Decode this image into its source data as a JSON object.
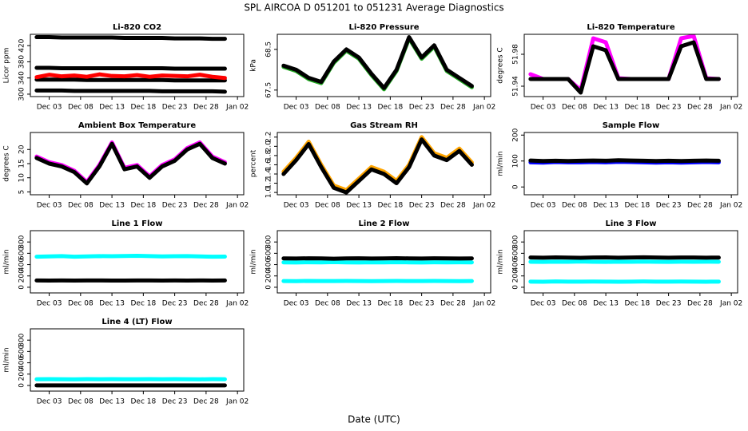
{
  "title": "SPL   AIRCOA D   051201 to 051231   Average Diagnostics",
  "xlabel": "Date (UTC)",
  "chart_data": [
    {
      "type": "line",
      "title": "Li-820 CO2",
      "ylabel": "Licor ppm",
      "x": [
        "Dec 01",
        "Dec 03",
        "Dec 05",
        "Dec 07",
        "Dec 09",
        "Dec 11",
        "Dec 13",
        "Dec 15",
        "Dec 17",
        "Dec 19",
        "Dec 21",
        "Dec 23",
        "Dec 25",
        "Dec 27",
        "Dec 29",
        "Dec 31"
      ],
      "xlim": [
        "Nov 30",
        "Jan 03"
      ],
      "xticks": [
        "Dec 03",
        "Dec 08",
        "Dec 13",
        "Dec 18",
        "Dec 23",
        "Dec 28",
        "Jan 02"
      ],
      "ylim": [
        294,
        448
      ],
      "yticks": [
        300,
        340,
        380,
        420
      ],
      "series": [
        {
          "color": "#000000",
          "values": [
            441,
            441,
            440,
            440,
            440,
            440,
            440,
            439,
            439,
            439,
            439,
            438,
            438,
            438,
            437,
            437
          ]
        },
        {
          "color": "#000000",
          "values": [
            365,
            365,
            364,
            364,
            364,
            364,
            364,
            364,
            364,
            364,
            364,
            363,
            363,
            363,
            363,
            363
          ]
        },
        {
          "color": "#000000",
          "values": [
            336,
            336,
            336,
            336,
            335,
            335,
            335,
            335,
            335,
            335,
            335,
            334,
            334,
            334,
            334,
            334
          ]
        },
        {
          "color": "#000000",
          "values": [
            309,
            309,
            309,
            308,
            308,
            308,
            308,
            308,
            308,
            308,
            307,
            307,
            307,
            307,
            307,
            306
          ]
        },
        {
          "color": "#ff0000",
          "values": [
            342,
            348,
            344,
            346,
            343,
            349,
            345,
            344,
            347,
            343,
            346,
            345,
            344,
            348,
            343,
            340
          ]
        }
      ]
    },
    {
      "type": "line",
      "title": "Li-820 Pressure",
      "ylabel": "kPa",
      "x": [
        "Dec 01",
        "Dec 03",
        "Dec 05",
        "Dec 07",
        "Dec 09",
        "Dec 11",
        "Dec 13",
        "Dec 15",
        "Dec 17",
        "Dec 19",
        "Dec 21",
        "Dec 23",
        "Dec 25",
        "Dec 27",
        "Dec 29",
        "Dec 31"
      ],
      "xlim": [
        "Nov 30",
        "Jan 03"
      ],
      "xticks": [
        "Dec 03",
        "Dec 08",
        "Dec 13",
        "Dec 18",
        "Dec 23",
        "Dec 28",
        "Jan 02"
      ],
      "ylim": [
        67.34,
        68.87
      ],
      "yticks": [
        67.5,
        68.5
      ],
      "series": [
        {
          "color": "#22aa22",
          "values": [
            68.07,
            67.97,
            67.77,
            67.67,
            68.17,
            68.47,
            68.27,
            67.87,
            67.52,
            67.97,
            68.77,
            68.27,
            68.57,
            67.97,
            67.77,
            67.57
          ]
        },
        {
          "color": "#000000",
          "values": [
            68.1,
            68.0,
            67.8,
            67.7,
            68.2,
            68.5,
            68.3,
            67.9,
            67.55,
            68.0,
            68.8,
            68.3,
            68.6,
            68.0,
            67.8,
            67.6
          ]
        }
      ]
    },
    {
      "type": "line",
      "title": "Li-820 Temperature",
      "ylabel": "degrees C",
      "x": [
        "Dec 01",
        "Dec 03",
        "Dec 05",
        "Dec 07",
        "Dec 09",
        "Dec 11",
        "Dec 13",
        "Dec 15",
        "Dec 17",
        "Dec 19",
        "Dec 21",
        "Dec 23",
        "Dec 25",
        "Dec 27",
        "Dec 29",
        "Dec 31"
      ],
      "xlim": [
        "Nov 30",
        "Jan 03"
      ],
      "xticks": [
        "Dec 03",
        "Dec 08",
        "Dec 13",
        "Dec 18",
        "Dec 23",
        "Dec 28",
        "Jan 02"
      ],
      "ylim": [
        51.927,
        52.005
      ],
      "yticks": [
        51.94,
        51.98
      ],
      "series": [
        {
          "color": "#ff00ff",
          "values": [
            51.955,
            51.949,
            51.949,
            51.949,
            51.935,
            52.0,
            51.995,
            51.95,
            51.949,
            51.949,
            51.949,
            51.949,
            52.0,
            52.003,
            51.95,
            51.949
          ]
        },
        {
          "color": "#000000",
          "values": [
            51.949,
            51.949,
            51.949,
            51.949,
            51.932,
            51.99,
            51.985,
            51.949,
            51.949,
            51.949,
            51.949,
            51.949,
            51.99,
            51.995,
            51.949,
            51.949
          ]
        }
      ]
    },
    {
      "type": "line",
      "title": "Ambient Box Temperature",
      "ylabel": "degrees C",
      "x": [
        "Dec 01",
        "Dec 03",
        "Dec 05",
        "Dec 07",
        "Dec 09",
        "Dec 11",
        "Dec 13",
        "Dec 15",
        "Dec 17",
        "Dec 19",
        "Dec 21",
        "Dec 23",
        "Dec 25",
        "Dec 27",
        "Dec 29",
        "Dec 31"
      ],
      "xlim": [
        "Nov 30",
        "Jan 03"
      ],
      "xticks": [
        "Dec 03",
        "Dec 08",
        "Dec 13",
        "Dec 18",
        "Dec 23",
        "Dec 28",
        "Jan 02"
      ],
      "ylim": [
        4,
        26
      ],
      "yticks": [
        5,
        10,
        15,
        20
      ],
      "series": [
        {
          "color": "#ff00ff",
          "values": [
            17.5,
            15.5,
            14.5,
            12.5,
            8.5,
            14.5,
            22.5,
            13.5,
            14.5,
            10.5,
            14.5,
            16.5,
            20.5,
            22.5,
            17.5,
            15.5
          ]
        },
        {
          "color": "#000000",
          "values": [
            17,
            15,
            14,
            12,
            8,
            14,
            22,
            13,
            14,
            10,
            14,
            16,
            20,
            22,
            17,
            15
          ]
        }
      ]
    },
    {
      "type": "line",
      "title": "Gas Stream RH",
      "ylabel": "percent",
      "x": [
        "Dec 01",
        "Dec 03",
        "Dec 05",
        "Dec 07",
        "Dec 09",
        "Dec 11",
        "Dec 13",
        "Dec 15",
        "Dec 17",
        "Dec 19",
        "Dec 21",
        "Dec 23",
        "Dec 25",
        "Dec 27",
        "Dec 29",
        "Dec 31"
      ],
      "xlim": [
        "Nov 30",
        "Jan 03"
      ],
      "xticks": [
        "Dec 03",
        "Dec 08",
        "Dec 13",
        "Dec 18",
        "Dec 23",
        "Dec 28",
        "Jan 02"
      ],
      "ylim": [
        0.95,
        2.3
      ],
      "yticks": [
        {
          "value": 1,
          "label": "1.0"
        },
        1.2,
        1.4,
        1.6,
        1.8,
        {
          "value": 2,
          "label": "2.0"
        },
        2.2
      ],
      "series": [
        {
          "color": "#ffa500",
          "values": [
            1.45,
            1.75,
            2.1,
            1.6,
            1.15,
            1.05,
            1.3,
            1.55,
            1.45,
            1.25,
            1.6,
            2.2,
            1.85,
            1.75,
            1.95,
            1.65
          ]
        },
        {
          "color": "#000000",
          "values": [
            1.4,
            1.7,
            2.05,
            1.55,
            1.1,
            1.0,
            1.25,
            1.5,
            1.4,
            1.2,
            1.55,
            2.15,
            1.8,
            1.7,
            1.9,
            1.6
          ]
        }
      ]
    },
    {
      "type": "line",
      "title": "Sample Flow",
      "ylabel": "ml/min",
      "x": [
        "Dec 01",
        "Dec 03",
        "Dec 05",
        "Dec 07",
        "Dec 09",
        "Dec 11",
        "Dec 13",
        "Dec 15",
        "Dec 17",
        "Dec 19",
        "Dec 21",
        "Dec 23",
        "Dec 25",
        "Dec 27",
        "Dec 29",
        "Dec 31"
      ],
      "xlim": [
        "Nov 30",
        "Jan 03"
      ],
      "xticks": [
        "Dec 03",
        "Dec 08",
        "Dec 13",
        "Dec 18",
        "Dec 23",
        "Dec 28",
        "Jan 02"
      ],
      "ylim": [
        -30,
        210
      ],
      "yticks": [
        0,
        100,
        200
      ],
      "series": [
        {
          "color": "#0000ff",
          "values": [
            95,
            94,
            96,
            95,
            95,
            96,
            95,
            97,
            96,
            95,
            94,
            95,
            94,
            95,
            96,
            95
          ]
        },
        {
          "color": "#000000",
          "values": [
            102,
            100,
            101,
            100,
            101,
            102,
            101,
            103,
            102,
            101,
            100,
            101,
            100,
            101,
            102,
            101
          ]
        }
      ]
    },
    {
      "type": "line",
      "title": "Line 1 Flow",
      "ylabel": "ml/min",
      "x": [
        "Dec 01",
        "Dec 03",
        "Dec 05",
        "Dec 07",
        "Dec 09",
        "Dec 11",
        "Dec 13",
        "Dec 15",
        "Dec 17",
        "Dec 19",
        "Dec 21",
        "Dec 23",
        "Dec 25",
        "Dec 27",
        "Dec 29",
        "Dec 31"
      ],
      "xlim": [
        "Nov 30",
        "Jan 03"
      ],
      "xticks": [
        "Dec 03",
        "Dec 08",
        "Dec 13",
        "Dec 18",
        "Dec 23",
        "Dec 28",
        "Jan 02"
      ],
      "ylim": [
        -100,
        1000
      ],
      "yticks": [
        0,
        200,
        400,
        600,
        800
      ],
      "series": [
        {
          "color": "#00ffff",
          "values": [
            540,
            545,
            550,
            540,
            545,
            550,
            548,
            552,
            555,
            550,
            545,
            548,
            550,
            545,
            540,
            542
          ]
        },
        {
          "color": "#000000",
          "values": [
            120,
            118,
            120,
            119,
            121,
            120,
            119,
            118,
            120,
            121,
            119,
            120,
            118,
            120,
            119,
            120
          ]
        }
      ]
    },
    {
      "type": "line",
      "title": "Line 2 Flow",
      "ylabel": "ml/min",
      "x": [
        "Dec 01",
        "Dec 03",
        "Dec 05",
        "Dec 07",
        "Dec 09",
        "Dec 11",
        "Dec 13",
        "Dec 15",
        "Dec 17",
        "Dec 19",
        "Dec 21",
        "Dec 23",
        "Dec 25",
        "Dec 27",
        "Dec 29",
        "Dec 31"
      ],
      "xlim": [
        "Nov 30",
        "Jan 03"
      ],
      "xticks": [
        "Dec 03",
        "Dec 08",
        "Dec 13",
        "Dec 18",
        "Dec 23",
        "Dec 28",
        "Jan 02"
      ],
      "ylim": [
        -100,
        1000
      ],
      "yticks": [
        0,
        200,
        400,
        600,
        800
      ],
      "series": [
        {
          "color": "#00ffff",
          "values": [
            110,
            108,
            112,
            110,
            109,
            111,
            110,
            108,
            110,
            112,
            110,
            109,
            111,
            110,
            108,
            110
          ]
        },
        {
          "color": "#00ffff",
          "values": [
            440,
            438,
            442,
            440,
            445,
            440,
            438,
            442,
            440,
            443,
            440,
            438,
            441,
            440,
            442,
            440
          ]
        },
        {
          "color": "#000000",
          "values": [
            510,
            508,
            512,
            510,
            505,
            510,
            512,
            508,
            510,
            514,
            510,
            508,
            511,
            510,
            509,
            510
          ]
        }
      ]
    },
    {
      "type": "line",
      "title": "Line 3 Flow",
      "ylabel": "ml/min",
      "x": [
        "Dec 01",
        "Dec 03",
        "Dec 05",
        "Dec 07",
        "Dec 09",
        "Dec 11",
        "Dec 13",
        "Dec 15",
        "Dec 17",
        "Dec 19",
        "Dec 21",
        "Dec 23",
        "Dec 25",
        "Dec 27",
        "Dec 29",
        "Dec 31"
      ],
      "xlim": [
        "Nov 30",
        "Jan 03"
      ],
      "xticks": [
        "Dec 03",
        "Dec 08",
        "Dec 13",
        "Dec 18",
        "Dec 23",
        "Dec 28",
        "Jan 02"
      ],
      "ylim": [
        -100,
        1000
      ],
      "yticks": [
        0,
        200,
        400,
        600,
        800
      ],
      "series": [
        {
          "color": "#00ffff",
          "values": [
            100,
            98,
            102,
            100,
            99,
            101,
            100,
            98,
            100,
            102,
            100,
            99,
            101,
            100,
            98,
            100
          ]
        },
        {
          "color": "#00ffff",
          "values": [
            450,
            448,
            452,
            450,
            455,
            450,
            448,
            452,
            450,
            453,
            450,
            448,
            451,
            450,
            452,
            450
          ]
        },
        {
          "color": "#000000",
          "values": [
            525,
            522,
            527,
            524,
            520,
            525,
            527,
            523,
            525,
            530,
            525,
            522,
            526,
            525,
            523,
            524
          ]
        }
      ]
    },
    {
      "type": "line",
      "title": "Line 4 (LT) Flow",
      "ylabel": "ml/min",
      "x": [
        "Dec 01",
        "Dec 03",
        "Dec 05",
        "Dec 07",
        "Dec 09",
        "Dec 11",
        "Dec 13",
        "Dec 15",
        "Dec 17",
        "Dec 19",
        "Dec 21",
        "Dec 23",
        "Dec 25",
        "Dec 27",
        "Dec 29",
        "Dec 31"
      ],
      "xlim": [
        "Nov 30",
        "Jan 03"
      ],
      "xticks": [
        "Dec 03",
        "Dec 08",
        "Dec 13",
        "Dec 18",
        "Dec 23",
        "Dec 28",
        "Jan 02"
      ],
      "ylim": [
        -100,
        1000
      ],
      "yticks": [
        0,
        200,
        400,
        600,
        800
      ],
      "series": [
        {
          "color": "#00ffff",
          "values": [
            110,
            112,
            110,
            108,
            111,
            110,
            112,
            110,
            109,
            111,
            110,
            112,
            110,
            108,
            111,
            110
          ]
        },
        {
          "color": "#000000",
          "values": [
            0,
            0,
            0,
            0,
            0,
            0,
            0,
            0,
            0,
            0,
            0,
            0,
            0,
            0,
            0,
            0
          ]
        }
      ]
    }
  ]
}
